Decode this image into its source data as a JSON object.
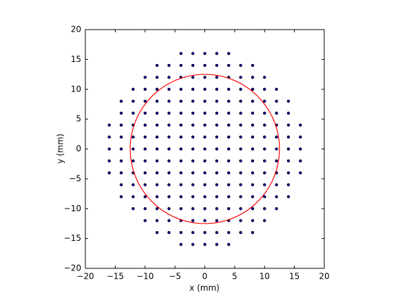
{
  "chart_data": {
    "type": "scatter",
    "xlabel": "x (mm)",
    "ylabel": "y (mm)",
    "xlim": [
      -20,
      20
    ],
    "ylim": [
      -20,
      20
    ],
    "xticks": [
      {
        "value": -20,
        "label": "−20"
      },
      {
        "value": -15,
        "label": "−15"
      },
      {
        "value": -10,
        "label": "−10"
      },
      {
        "value": -5,
        "label": "−5"
      },
      0,
      5,
      10,
      15,
      20
    ],
    "yticks": [
      {
        "value": -20,
        "label": "−20"
      },
      {
        "value": -15,
        "label": "−15"
      },
      {
        "value": -10,
        "label": "−10"
      },
      {
        "value": -5,
        "label": "−5"
      },
      0,
      5,
      10,
      15,
      20
    ],
    "color": "#000080",
    "x": [
      -4,
      -2,
      0,
      2,
      4,
      -8,
      -6,
      -4,
      -2,
      0,
      2,
      4,
      6,
      8,
      -10,
      -8,
      -6,
      -4,
      -2,
      0,
      2,
      4,
      6,
      8,
      10,
      -12,
      -10,
      -8,
      -6,
      -4,
      -2,
      0,
      2,
      4,
      6,
      8,
      10,
      12,
      -14,
      -12,
      -10,
      -8,
      -6,
      -4,
      -2,
      0,
      2,
      4,
      6,
      8,
      10,
      12,
      14,
      -14,
      -12,
      -10,
      -8,
      -6,
      -4,
      -2,
      0,
      2,
      4,
      6,
      8,
      10,
      12,
      14,
      -16,
      -14,
      -12,
      -10,
      -8,
      -6,
      -4,
      -2,
      0,
      2,
      4,
      6,
      8,
      10,
      12,
      14,
      16,
      -16,
      -14,
      -12,
      -10,
      -8,
      -6,
      -4,
      -2,
      0,
      2,
      4,
      6,
      8,
      10,
      12,
      14,
      16,
      -16,
      -14,
      -12,
      -10,
      -8,
      -6,
      -4,
      -2,
      0,
      2,
      4,
      6,
      8,
      10,
      12,
      14,
      16,
      -16,
      -14,
      -12,
      -10,
      -8,
      -6,
      -4,
      -2,
      0,
      2,
      4,
      6,
      8,
      10,
      12,
      14,
      16,
      -16,
      -14,
      -12,
      -10,
      -8,
      -6,
      -4,
      -2,
      0,
      2,
      4,
      6,
      8,
      10,
      12,
      14,
      16,
      -14,
      -12,
      -10,
      -8,
      -6,
      -4,
      -2,
      0,
      2,
      4,
      6,
      8,
      10,
      12,
      14,
      -14,
      -12,
      -10,
      -8,
      -6,
      -4,
      -2,
      0,
      2,
      4,
      6,
      8,
      10,
      12,
      14,
      -12,
      -10,
      -8,
      -6,
      -4,
      -2,
      0,
      2,
      4,
      6,
      8,
      10,
      12,
      -10,
      -8,
      -6,
      -4,
      -2,
      0,
      2,
      4,
      6,
      8,
      10,
      -8,
      -6,
      -4,
      -2,
      0,
      2,
      4,
      6,
      8,
      -4,
      -2,
      0,
      2,
      4
    ],
    "y": [
      16,
      16,
      16,
      16,
      16,
      14,
      14,
      14,
      14,
      14,
      14,
      14,
      14,
      14,
      12,
      12,
      12,
      12,
      12,
      12,
      12,
      12,
      12,
      12,
      12,
      10,
      10,
      10,
      10,
      10,
      10,
      10,
      10,
      10,
      10,
      10,
      10,
      10,
      8,
      8,
      8,
      8,
      8,
      8,
      8,
      8,
      8,
      8,
      8,
      8,
      8,
      8,
      8,
      6,
      6,
      6,
      6,
      6,
      6,
      6,
      6,
      6,
      6,
      6,
      6,
      6,
      6,
      6,
      4,
      4,
      4,
      4,
      4,
      4,
      4,
      4,
      4,
      4,
      4,
      4,
      4,
      4,
      4,
      4,
      4,
      2,
      2,
      2,
      2,
      2,
      2,
      2,
      2,
      2,
      2,
      2,
      2,
      2,
      2,
      2,
      2,
      2,
      0,
      0,
      0,
      0,
      0,
      0,
      0,
      0,
      0,
      0,
      0,
      0,
      0,
      0,
      0,
      0,
      0,
      -2,
      -2,
      -2,
      -2,
      -2,
      -2,
      -2,
      -2,
      -2,
      -2,
      -2,
      -2,
      -2,
      -2,
      -2,
      -2,
      -2,
      -4,
      -4,
      -4,
      -4,
      -4,
      -4,
      -4,
      -4,
      -4,
      -4,
      -4,
      -4,
      -4,
      -4,
      -4,
      -4,
      -4,
      -6,
      -6,
      -6,
      -6,
      -6,
      -6,
      -6,
      -6,
      -6,
      -6,
      -6,
      -6,
      -6,
      -6,
      -6,
      -8,
      -8,
      -8,
      -8,
      -8,
      -8,
      -8,
      -8,
      -8,
      -8,
      -8,
      -8,
      -8,
      -8,
      -8,
      -10,
      -10,
      -10,
      -10,
      -10,
      -10,
      -10,
      -10,
      -10,
      -10,
      -10,
      -10,
      -10,
      -12,
      -12,
      -12,
      -12,
      -12,
      -12,
      -12,
      -12,
      -12,
      -12,
      -12,
      -14,
      -14,
      -14,
      -14,
      -14,
      -14,
      -14,
      -14,
      -14,
      -16,
      -16,
      -16,
      -16,
      -16
    ],
    "circle": {
      "center": [
        0,
        0
      ],
      "radius": 12.5,
      "color": "#ff0000"
    }
  }
}
